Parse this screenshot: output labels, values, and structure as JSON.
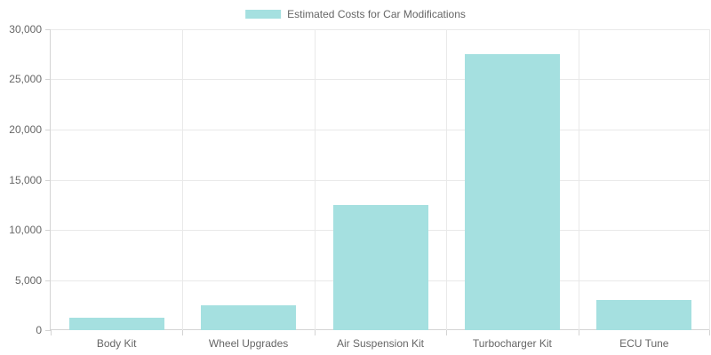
{
  "chart_data": {
    "type": "bar",
    "title": "",
    "legend": {
      "label": "Estimated Costs for Car Modifications",
      "position": "top"
    },
    "categories": [
      "Body Kit",
      "Wheel Upgrades",
      "Air Suspension Kit",
      "Turbocharger Kit",
      "ECU Tune"
    ],
    "series": [
      {
        "name": "Estimated Costs for Car Modifications",
        "values": [
          1200,
          2500,
          12500,
          27500,
          3000
        ]
      }
    ],
    "xlabel": "",
    "ylabel": "",
    "ylim": [
      0,
      30000
    ],
    "ytick_step": 5000,
    "ytick_labels": [
      "0",
      "5,000",
      "10,000",
      "15,000",
      "20,000",
      "25,000",
      "30,000"
    ],
    "grid": true,
    "colors": {
      "bar_fill": "#a5e0e0",
      "grid_line": "#e9e9e9",
      "axis_line": "#d4d4d4",
      "tick_mark": "#d4d4d4",
      "text": "#666666",
      "background": "#ffffff"
    }
  }
}
